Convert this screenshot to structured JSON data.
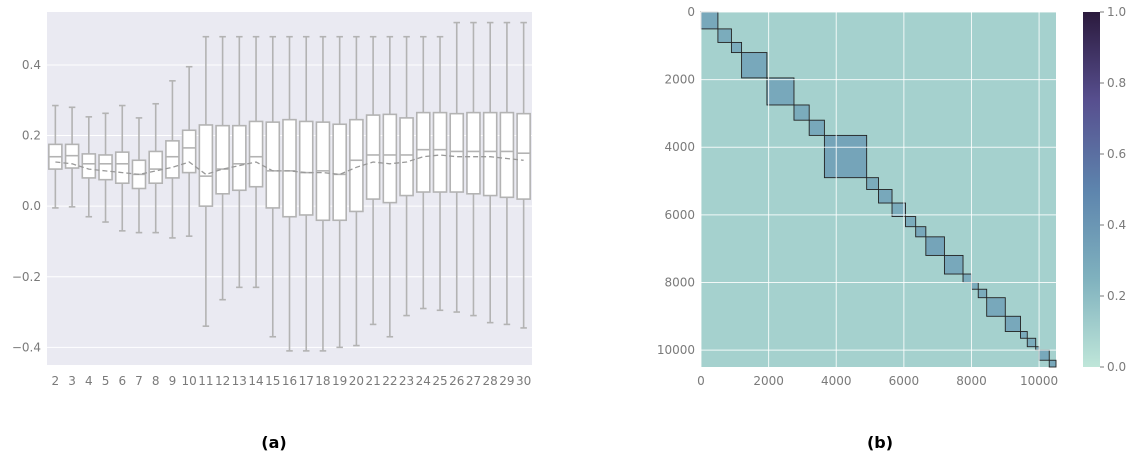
{
  "captions": {
    "left": "(a)",
    "right": "(b)"
  },
  "chart_data": [
    {
      "type": "box",
      "title": "",
      "xlabel": "",
      "ylabel": "",
      "ylim": [
        -0.45,
        0.55
      ],
      "yticks": [
        -0.4,
        -0.2,
        0.0,
        0.2,
        0.4
      ],
      "ytick_labels": [
        "−0.4",
        "−0.2",
        "0.0",
        "0.2",
        "0.4"
      ],
      "grid": true,
      "categories": [
        "2",
        "3",
        "4",
        "5",
        "6",
        "7",
        "8",
        "9",
        "10",
        "11",
        "12",
        "13",
        "14",
        "15",
        "16",
        "17",
        "18",
        "19",
        "20",
        "21",
        "22",
        "23",
        "24",
        "25",
        "26",
        "27",
        "28",
        "29",
        "30"
      ],
      "boxes": [
        {
          "whislo": -0.005,
          "q1": 0.105,
          "med": 0.14,
          "q3": 0.175,
          "whishi": 0.285,
          "mean": 0.125
        },
        {
          "whislo": -0.002,
          "q1": 0.108,
          "med": 0.143,
          "q3": 0.175,
          "whishi": 0.28,
          "mean": 0.12
        },
        {
          "whislo": -0.03,
          "q1": 0.08,
          "med": 0.12,
          "q3": 0.148,
          "whishi": 0.253,
          "mean": 0.105
        },
        {
          "whislo": -0.045,
          "q1": 0.075,
          "med": 0.12,
          "q3": 0.145,
          "whishi": 0.263,
          "mean": 0.1
        },
        {
          "whislo": -0.07,
          "q1": 0.065,
          "med": 0.12,
          "q3": 0.153,
          "whishi": 0.285,
          "mean": 0.095
        },
        {
          "whislo": -0.075,
          "q1": 0.05,
          "med": 0.09,
          "q3": 0.13,
          "whishi": 0.25,
          "mean": 0.09
        },
        {
          "whislo": -0.075,
          "q1": 0.065,
          "med": 0.105,
          "q3": 0.155,
          "whishi": 0.29,
          "mean": 0.1
        },
        {
          "whislo": -0.09,
          "q1": 0.08,
          "med": 0.14,
          "q3": 0.185,
          "whishi": 0.355,
          "mean": 0.11
        },
        {
          "whislo": -0.085,
          "q1": 0.095,
          "med": 0.165,
          "q3": 0.215,
          "whishi": 0.395,
          "mean": 0.125
        },
        {
          "whislo": -0.34,
          "q1": 0.0,
          "med": 0.085,
          "q3": 0.23,
          "whishi": 0.48,
          "mean": 0.09
        },
        {
          "whislo": -0.265,
          "q1": 0.035,
          "med": 0.105,
          "q3": 0.228,
          "whishi": 0.48,
          "mean": 0.105
        },
        {
          "whislo": -0.23,
          "q1": 0.045,
          "med": 0.12,
          "q3": 0.228,
          "whishi": 0.48,
          "mean": 0.115
        },
        {
          "whislo": -0.23,
          "q1": 0.055,
          "med": 0.14,
          "q3": 0.24,
          "whishi": 0.48,
          "mean": 0.125
        },
        {
          "whislo": -0.37,
          "q1": -0.005,
          "med": 0.1,
          "q3": 0.238,
          "whishi": 0.48,
          "mean": 0.1
        },
        {
          "whislo": -0.41,
          "q1": -0.03,
          "med": 0.1,
          "q3": 0.245,
          "whishi": 0.48,
          "mean": 0.1
        },
        {
          "whislo": -0.41,
          "q1": -0.025,
          "med": 0.095,
          "q3": 0.24,
          "whishi": 0.48,
          "mean": 0.095
        },
        {
          "whislo": -0.41,
          "q1": -0.04,
          "med": 0.1,
          "q3": 0.238,
          "whishi": 0.48,
          "mean": 0.095
        },
        {
          "whislo": -0.4,
          "q1": -0.04,
          "med": 0.09,
          "q3": 0.232,
          "whishi": 0.48,
          "mean": 0.09
        },
        {
          "whislo": -0.395,
          "q1": -0.015,
          "med": 0.13,
          "q3": 0.245,
          "whishi": 0.48,
          "mean": 0.11
        },
        {
          "whislo": -0.335,
          "q1": 0.02,
          "med": 0.145,
          "q3": 0.258,
          "whishi": 0.48,
          "mean": 0.125
        },
        {
          "whislo": -0.37,
          "q1": 0.01,
          "med": 0.145,
          "q3": 0.26,
          "whishi": 0.48,
          "mean": 0.12
        },
        {
          "whislo": -0.31,
          "q1": 0.03,
          "med": 0.145,
          "q3": 0.25,
          "whishi": 0.48,
          "mean": 0.125
        },
        {
          "whislo": -0.29,
          "q1": 0.04,
          "med": 0.16,
          "q3": 0.265,
          "whishi": 0.48,
          "mean": 0.14
        },
        {
          "whislo": -0.295,
          "q1": 0.04,
          "med": 0.16,
          "q3": 0.265,
          "whishi": 0.48,
          "mean": 0.145
        },
        {
          "whislo": -0.3,
          "q1": 0.04,
          "med": 0.155,
          "q3": 0.262,
          "whishi": 0.52,
          "mean": 0.14
        },
        {
          "whislo": -0.31,
          "q1": 0.035,
          "med": 0.155,
          "q3": 0.265,
          "whishi": 0.52,
          "mean": 0.14
        },
        {
          "whislo": -0.33,
          "q1": 0.03,
          "med": 0.155,
          "q3": 0.265,
          "whishi": 0.52,
          "mean": 0.14
        },
        {
          "whislo": -0.335,
          "q1": 0.025,
          "med": 0.155,
          "q3": 0.265,
          "whishi": 0.52,
          "mean": 0.135
        },
        {
          "whislo": -0.345,
          "q1": 0.02,
          "med": 0.15,
          "q3": 0.262,
          "whishi": 0.52,
          "mean": 0.13
        }
      ],
      "colors": {
        "background": "#eaeaf2",
        "box_edge": "#b3b3b3",
        "box_fill": "#ffffff",
        "mean_line": "#999999"
      }
    },
    {
      "type": "heatmap",
      "title": "",
      "xlabel": "",
      "ylabel": "",
      "xlim": [
        0,
        10500
      ],
      "ylim": [
        0,
        10500
      ],
      "xticks": [
        0,
        2000,
        4000,
        6000,
        8000,
        10000
      ],
      "xtick_labels": [
        "0",
        "2000",
        "4000",
        "6000",
        "8000",
        "10000"
      ],
      "yticks": [
        0,
        2000,
        4000,
        6000,
        8000,
        10000
      ],
      "ytick_labels": [
        "0",
        "2000",
        "4000",
        "6000",
        "8000",
        "10000"
      ],
      "y_inverted": true,
      "background_value": 0.1,
      "diagonal_blocks": [
        {
          "start": 0,
          "end": 500,
          "value": 0.3
        },
        {
          "start": 500,
          "end": 900,
          "value": 0.28
        },
        {
          "start": 900,
          "end": 1200,
          "value": 0.28
        },
        {
          "start": 1200,
          "end": 1950,
          "value": 0.3
        },
        {
          "start": 1950,
          "end": 2750,
          "value": 0.3
        },
        {
          "start": 2750,
          "end": 3200,
          "value": 0.28
        },
        {
          "start": 3200,
          "end": 3650,
          "value": 0.3
        },
        {
          "start": 3650,
          "end": 4900,
          "value": 0.32
        },
        {
          "start": 4900,
          "end": 5250,
          "value": 0.28
        },
        {
          "start": 5250,
          "end": 5650,
          "value": 0.3
        },
        {
          "start": 5650,
          "end": 6050,
          "value": 0.28
        },
        {
          "start": 6050,
          "end": 6350,
          "value": 0.28
        },
        {
          "start": 6350,
          "end": 6650,
          "value": 0.3
        },
        {
          "start": 6650,
          "end": 7200,
          "value": 0.32
        },
        {
          "start": 7200,
          "end": 7750,
          "value": 0.3
        },
        {
          "start": 7750,
          "end": 8000,
          "value": 0.28
        },
        {
          "start": 8000,
          "end": 8200,
          "value": 0.28
        },
        {
          "start": 8200,
          "end": 8450,
          "value": 0.28
        },
        {
          "start": 8450,
          "end": 9000,
          "value": 0.3
        },
        {
          "start": 9000,
          "end": 9450,
          "value": 0.3
        },
        {
          "start": 9450,
          "end": 9650,
          "value": 0.28
        },
        {
          "start": 9650,
          "end": 9900,
          "value": 0.28
        },
        {
          "start": 9900,
          "end": 10000,
          "value": 0.28
        },
        {
          "start": 10000,
          "end": 10300,
          "value": 0.3
        },
        {
          "start": 10300,
          "end": 10500,
          "value": 0.3
        }
      ],
      "colorbar": {
        "range": [
          0.0,
          1.0
        ],
        "ticks": [
          0.0,
          0.2,
          0.4,
          0.6,
          0.8,
          1.0
        ],
        "tick_labels": [
          "0.0",
          "0.2",
          "0.4",
          "0.6",
          "0.8",
          "1.0"
        ],
        "colors": [
          "#bfe6d9",
          "#7fb1be",
          "#5d84ad",
          "#574f8f",
          "#2b1a3d"
        ]
      }
    }
  ]
}
